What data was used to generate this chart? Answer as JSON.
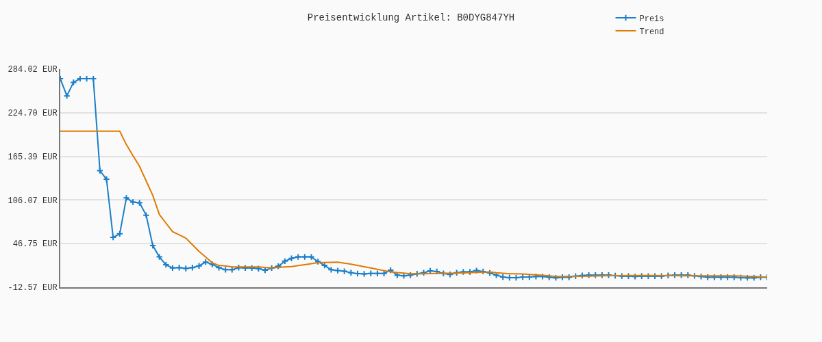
{
  "chart_data": {
    "type": "line",
    "title": "Preisentwicklung Artikel: B0DYG847YH",
    "categories": [
      null,
      null,
      null,
      null,
      null,
      null,
      null,
      null,
      null,
      null,
      null,
      null,
      null,
      null,
      null,
      null,
      null,
      null,
      null,
      null,
      null,
      null,
      null,
      null,
      null,
      null,
      null,
      null,
      null,
      null,
      null,
      null,
      null,
      null,
      null,
      null,
      null,
      null,
      null,
      null,
      null,
      null,
      null,
      null,
      null,
      null,
      null,
      null,
      null,
      null,
      null,
      null,
      null,
      null,
      null,
      null,
      null,
      null,
      null,
      null,
      null,
      null,
      null,
      null,
      null,
      null,
      null,
      null,
      null,
      null,
      null,
      null,
      null,
      null,
      null,
      null,
      null,
      null,
      null,
      null,
      null,
      null,
      null,
      null,
      null,
      null,
      null,
      null,
      null,
      null,
      null,
      null,
      null,
      null,
      null,
      null,
      null,
      null,
      null,
      null,
      null,
      null,
      null,
      null,
      null,
      null,
      null,
      null
    ],
    "ylim": [
      -12.57,
      284.02
    ],
    "yticks": [
      {
        "value": -12.57,
        "label": "-12.57 EUR"
      },
      {
        "value": 46.75,
        "label": "46.75 EUR"
      },
      {
        "value": 106.07,
        "label": "106.07 EUR"
      },
      {
        "value": 165.39,
        "label": "165.39 EUR"
      },
      {
        "value": 224.7,
        "label": "224.70 EUR"
      },
      {
        "value": 284.02,
        "label": "284.02 EUR"
      }
    ],
    "tick_labels": "y",
    "grid": "y",
    "legend": "top right",
    "series": [
      {
        "name": "Preis",
        "color": "#1a7fc9",
        "marker": "cross",
        "values": [
          270.9,
          247.6,
          266,
          270.9,
          270.9,
          270.9,
          145.9,
          134.3,
          55.2,
          60.1,
          108.9,
          103.2,
          102.3,
          85.4,
          44.1,
          28.7,
          18,
          13.6,
          14.2,
          13,
          14.2,
          16.5,
          21.7,
          18.6,
          14.2,
          11.3,
          11.3,
          14.2,
          13.6,
          13.6,
          12.7,
          10.7,
          13.6,
          16,
          22.9,
          26.7,
          28.7,
          28.7,
          28.7,
          22.3,
          17.1,
          11.3,
          10.1,
          9.2,
          7.2,
          6,
          5.5,
          6.3,
          6.3,
          6.3,
          10.7,
          4,
          3.1,
          4,
          5.8,
          7.2,
          9.8,
          8.9,
          6.3,
          4.9,
          7.2,
          8.4,
          8.4,
          10.1,
          8.9,
          6.9,
          4,
          1.4,
          0.5,
          0.5,
          1.4,
          1.4,
          2,
          2,
          1.1,
          0.3,
          1.1,
          1.1,
          2.6,
          3.5,
          4,
          4,
          4,
          4,
          3.2,
          2.6,
          2.6,
          2,
          2.6,
          2.6,
          2.6,
          2.6,
          3.5,
          4,
          4,
          4,
          2.9,
          2,
          1.1,
          1.1,
          1.1,
          1.1,
          1.1,
          0.5,
          0.3,
          0.3,
          1.1,
          1.1
        ]
      },
      {
        "name": "Trend",
        "color": "#e07b00",
        "marker": "none",
        "values": [
          199.7,
          199.7,
          199.7,
          199.7,
          199.7,
          199.7,
          199.7,
          199.7,
          199.7,
          199.7,
          181.4,
          166.5,
          151.7,
          132,
          112.4,
          86.3,
          74.6,
          63,
          58.6,
          54.3,
          45.3,
          36.3,
          28.5,
          20.8,
          17.1,
          16.5,
          15.1,
          15.1,
          15.1,
          15.1,
          15.1,
          14.4,
          13.6,
          14.3,
          15,
          15.6,
          16.9,
          18.2,
          19.5,
          20.8,
          21.1,
          21.4,
          21.7,
          20.3,
          18.9,
          17.1,
          15.4,
          13.6,
          11.9,
          10.1,
          8.4,
          7.5,
          6.7,
          5.8,
          5.9,
          5.9,
          6,
          6.2,
          6.4,
          6.6,
          6.8,
          7,
          7.2,
          7.6,
          8,
          8.4,
          7.1,
          6.5,
          5.8,
          5.7,
          5.5,
          4.9,
          4.3,
          3.7,
          3.1,
          2,
          2.1,
          2.2,
          2.2,
          2.3,
          2.6,
          2.8,
          3.1,
          3.2,
          3.2,
          3.3,
          3.4,
          3.4,
          3.5,
          3.4,
          3.4,
          3.3,
          3.3,
          3.2,
          3.1,
          3.1,
          3.1,
          3.1,
          3.1,
          3.1,
          3.1,
          3.1,
          3.1,
          2.8,
          2.4,
          2.1,
          1.7,
          1.4
        ]
      }
    ]
  }
}
